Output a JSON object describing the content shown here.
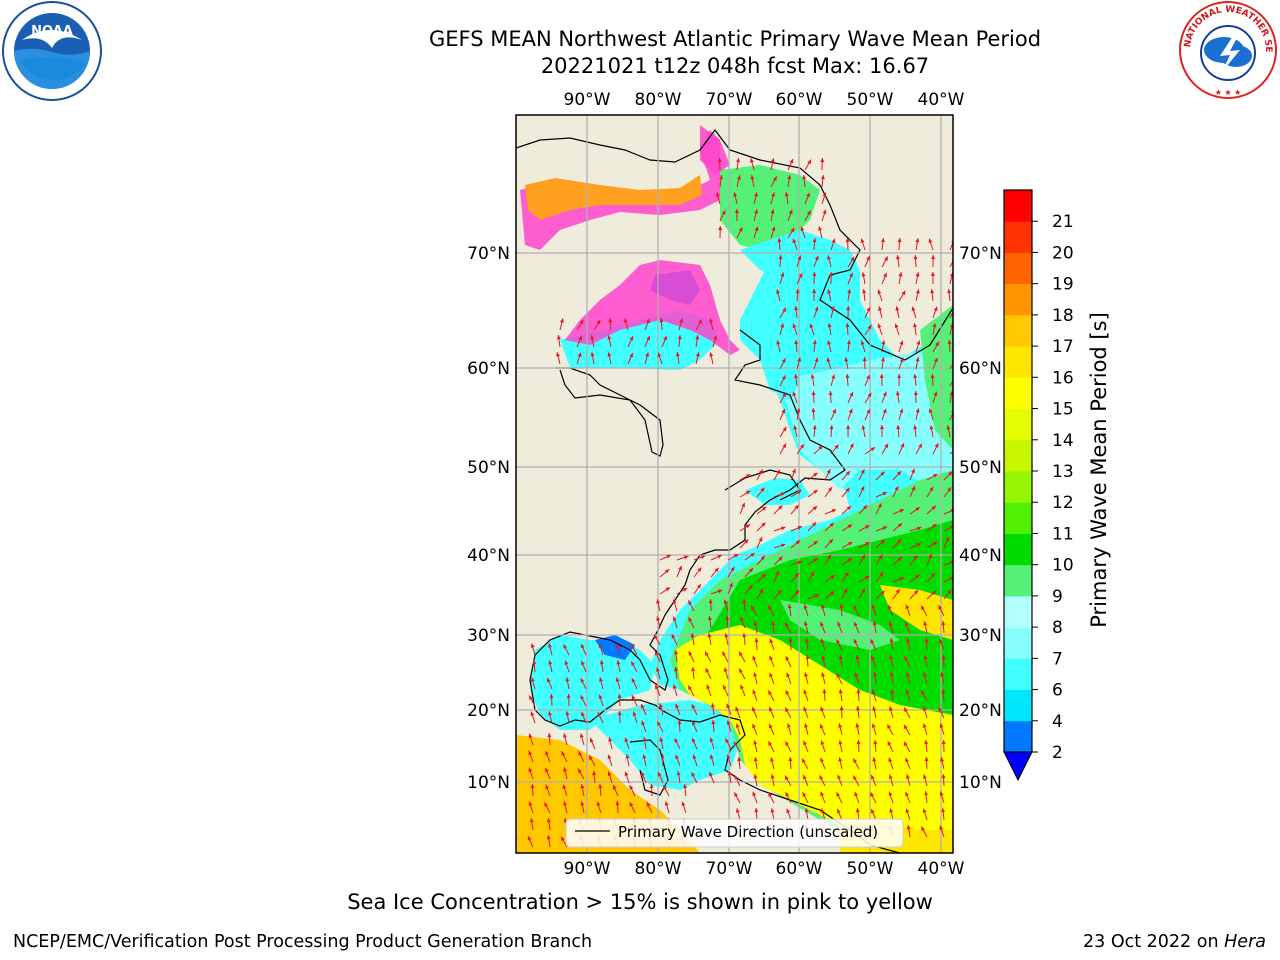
{
  "header": {
    "title": "GEFS MEAN Northwest Atlantic Primary Wave Mean Period",
    "subtitle": "20221021 t12z 048h fcst   Max: 16.67"
  },
  "logos": {
    "left": {
      "text": "NOAA",
      "ring_text": "NATIONAL OCEANIC AND ATMOSPHERIC ADMINISTRATION · U.S. DEPARTMENT OF COMMERCE"
    },
    "right": {
      "ring_text": "NATIONAL WEATHER SERVICE"
    }
  },
  "map": {
    "lon_labels": [
      "90°W",
      "80°W",
      "70°W",
      "60°W",
      "50°W",
      "40°W"
    ],
    "lat_labels": [
      "70°N",
      "60°N",
      "50°N",
      "40°N",
      "30°N",
      "20°N",
      "10°N"
    ],
    "legend_label": "Primary Wave Direction (unscaled)",
    "colors": {
      "land": "#efecdc",
      "grid": "#b0b0b0",
      "arrow": "#e8141e",
      "ice_pink": "#ff44cc"
    }
  },
  "colorbar": {
    "label": "Primary Wave Mean Period [s]",
    "ticks": [
      "2",
      "4",
      "6",
      "7",
      "8",
      "9",
      "10",
      "11",
      "12",
      "13",
      "14",
      "15",
      "16",
      "17",
      "18",
      "19",
      "20",
      "21"
    ],
    "colors": [
      "#0078ff",
      "#00e6ff",
      "#42ffff",
      "#87ffff",
      "#b4ffff",
      "#55f078",
      "#00dc00",
      "#50f000",
      "#96f500",
      "#c8f500",
      "#e6ff00",
      "#ffff00",
      "#ffe600",
      "#ffc800",
      "#ff9600",
      "#ff6400",
      "#ff3200",
      "#ff0000"
    ],
    "extend_color": "#0000ff"
  },
  "caption": "Sea Ice Concentration > 15% is shown in pink to yellow",
  "footer": {
    "left": "NCEP/EMC/Verification Post Processing Product Generation Branch",
    "right_date": "23 Oct 2022 on",
    "right_host": "Hera"
  }
}
